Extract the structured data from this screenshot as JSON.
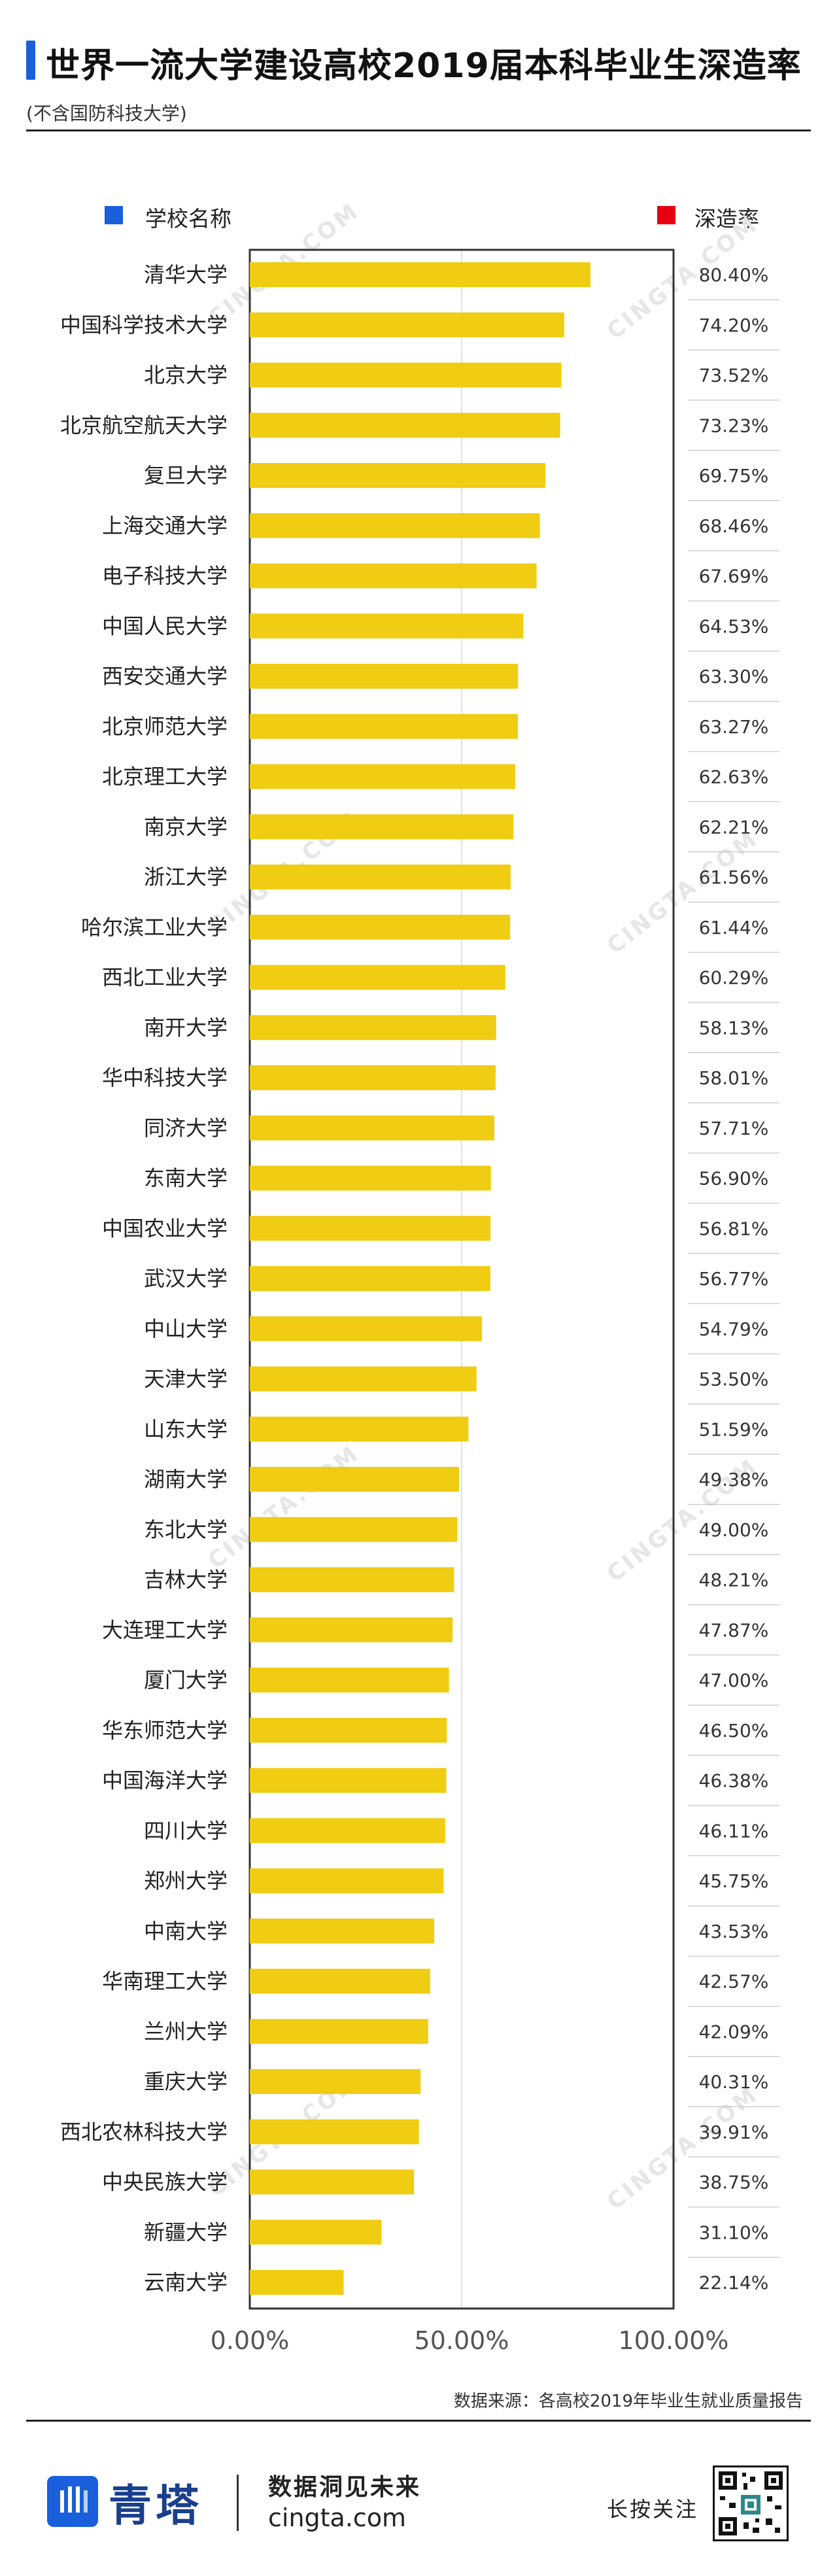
{
  "header": {
    "title": "世界一流大学建设高校2019届本科毕业生深造率",
    "subtitle": "(不含国防科技大学)"
  },
  "legend": {
    "left_label": "学校名称",
    "left_color": "#1a5fdc",
    "right_label": "深造率",
    "right_color": "#e60012"
  },
  "colors": {
    "bar": "#f0cc12",
    "frame": "#333333"
  },
  "source": "数据来源：各高校2019年毕业生就业质量报告",
  "footer": {
    "brand": "青塔",
    "slogan": "数据洞见未来",
    "url": "cingta.com",
    "follow": "长按关注",
    "qr_icon": "qr-code-icon",
    "logo_icon": "cingta-logo-icon"
  },
  "watermark": "CINGTA.COM",
  "chart_data": {
    "type": "bar",
    "orientation": "horizontal",
    "categories": [
      "清华大学",
      "中国科学技术大学",
      "北京大学",
      "北京航空航天大学",
      "复旦大学",
      "上海交通大学",
      "电子科技大学",
      "中国人民大学",
      "西安交通大学",
      "北京师范大学",
      "北京理工大学",
      "南京大学",
      "浙江大学",
      "哈尔滨工业大学",
      "西北工业大学",
      "南开大学",
      "华中科技大学",
      "同济大学",
      "东南大学",
      "中国农业大学",
      "武汉大学",
      "中山大学",
      "天津大学",
      "山东大学",
      "湖南大学",
      "东北大学",
      "吉林大学",
      "大连理工大学",
      "厦门大学",
      "华东师范大学",
      "中国海洋大学",
      "四川大学",
      "郑州大学",
      "中南大学",
      "华南理工大学",
      "兰州大学",
      "重庆大学",
      "西北农林科技大学",
      "中央民族大学",
      "新疆大学",
      "云南大学"
    ],
    "values": [
      80.4,
      74.2,
      73.52,
      73.23,
      69.75,
      68.46,
      67.69,
      64.53,
      63.3,
      63.27,
      62.63,
      62.21,
      61.56,
      61.44,
      60.29,
      58.13,
      58.01,
      57.71,
      56.9,
      56.81,
      56.77,
      54.79,
      53.5,
      51.59,
      49.38,
      49.0,
      48.21,
      47.87,
      47.0,
      46.5,
      46.38,
      46.11,
      45.75,
      43.53,
      42.57,
      42.09,
      40.31,
      39.91,
      38.75,
      31.1,
      22.14
    ],
    "value_labels": [
      "80.40%",
      "74.20%",
      "73.52%",
      "73.23%",
      "69.75%",
      "68.46%",
      "67.69%",
      "64.53%",
      "63.30%",
      "63.27%",
      "62.63%",
      "62.21%",
      "61.56%",
      "61.44%",
      "60.29%",
      "58.13%",
      "58.01%",
      "57.71%",
      "56.90%",
      "56.81%",
      "56.77%",
      "54.79%",
      "53.50%",
      "51.59%",
      "49.38%",
      "49.00%",
      "48.21%",
      "47.87%",
      "47.00%",
      "46.50%",
      "46.38%",
      "46.11%",
      "45.75%",
      "43.53%",
      "42.57%",
      "42.09%",
      "40.31%",
      "39.91%",
      "38.75%",
      "31.10%",
      "22.14%"
    ],
    "xlim": [
      0,
      100
    ],
    "x_ticks": [
      "0.00%",
      "50.00%",
      "100.00%"
    ],
    "grid": "vertical-at-50"
  }
}
